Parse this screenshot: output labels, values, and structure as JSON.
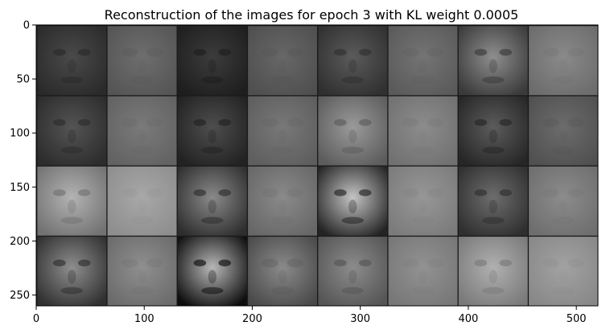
{
  "chart_data": {
    "type": "image",
    "title": "Reconstruction of the images for epoch 3 with KL weight 0.0005",
    "xlabel": "",
    "ylabel": "",
    "xlim": [
      0,
      520
    ],
    "ylim": [
      260,
      0
    ],
    "x_ticks": [
      0,
      100,
      200,
      300,
      400,
      500
    ],
    "y_ticks": [
      0,
      50,
      100,
      150,
      200,
      250
    ],
    "grid": false,
    "image_grid": {
      "rows": 4,
      "cols": 8,
      "tile_size": 64,
      "spacing": 1,
      "layout": "alternating original / reconstruction columns",
      "tiles": [
        [
          {
            "kind": "original",
            "tone": "#4a4a4a",
            "shade": "#2a2a2a"
          },
          {
            "kind": "reconstruction",
            "tone": "#6e6e6e",
            "shade": "#555555"
          },
          {
            "kind": "original",
            "tone": "#3c3c3c",
            "shade": "#1e1e1e"
          },
          {
            "kind": "reconstruction",
            "tone": "#676767",
            "shade": "#4f4f4f"
          },
          {
            "kind": "original",
            "tone": "#5b5b5b",
            "shade": "#303030"
          },
          {
            "kind": "reconstruction",
            "tone": "#747474",
            "shade": "#5a5a5a"
          },
          {
            "kind": "original",
            "tone": "#8e8e8e",
            "shade": "#3a3a3a"
          },
          {
            "kind": "reconstruction",
            "tone": "#8a8a8a",
            "shade": "#6c6c6c"
          }
        ],
        [
          {
            "kind": "original",
            "tone": "#545454",
            "shade": "#2c2c2c"
          },
          {
            "kind": "reconstruction",
            "tone": "#7a7a7a",
            "shade": "#626262"
          },
          {
            "kind": "original",
            "tone": "#4e4e4e",
            "shade": "#222222"
          },
          {
            "kind": "reconstruction",
            "tone": "#787878",
            "shade": "#5e5e5e"
          },
          {
            "kind": "original",
            "tone": "#9a9a9a",
            "shade": "#5c5c5c"
          },
          {
            "kind": "reconstruction",
            "tone": "#8c8c8c",
            "shade": "#717171"
          },
          {
            "kind": "original",
            "tone": "#5c5c5c",
            "shade": "#262626"
          },
          {
            "kind": "reconstruction",
            "tone": "#6c6c6c",
            "shade": "#505050"
          }
        ],
        [
          {
            "kind": "original",
            "tone": "#b3b3b3",
            "shade": "#727272"
          },
          {
            "kind": "reconstruction",
            "tone": "#a8a8a8",
            "shade": "#8e8e8e"
          },
          {
            "kind": "original",
            "tone": "#8a8a8a",
            "shade": "#2e2e2e"
          },
          {
            "kind": "reconstruction",
            "tone": "#8a8a8a",
            "shade": "#676767"
          },
          {
            "kind": "original",
            "tone": "#c4c4c4",
            "shade": "#242424"
          },
          {
            "kind": "reconstruction",
            "tone": "#979797",
            "shade": "#7b7b7b"
          },
          {
            "kind": "original",
            "tone": "#6d6d6d",
            "shade": "#2f2f2f"
          },
          {
            "kind": "reconstruction",
            "tone": "#8c8c8c",
            "shade": "#6e6e6e"
          }
        ],
        [
          {
            "kind": "original",
            "tone": "#8e8e8e",
            "shade": "#303030"
          },
          {
            "kind": "reconstruction",
            "tone": "#8f8f8f",
            "shade": "#6b6b6b"
          },
          {
            "kind": "original",
            "tone": "#b8b8b8",
            "shade": "#0e0e0e"
          },
          {
            "kind": "reconstruction",
            "tone": "#8a8a8a",
            "shade": "#4a4a4a"
          },
          {
            "kind": "original",
            "tone": "#8c8c8c",
            "shade": "#555555"
          },
          {
            "kind": "reconstruction",
            "tone": "#929292",
            "shade": "#777777"
          },
          {
            "kind": "original",
            "tone": "#b0b0b0",
            "shade": "#7a7a7a"
          },
          {
            "kind": "reconstruction",
            "tone": "#a2a2a2",
            "shade": "#888888"
          }
        ]
      ]
    }
  }
}
